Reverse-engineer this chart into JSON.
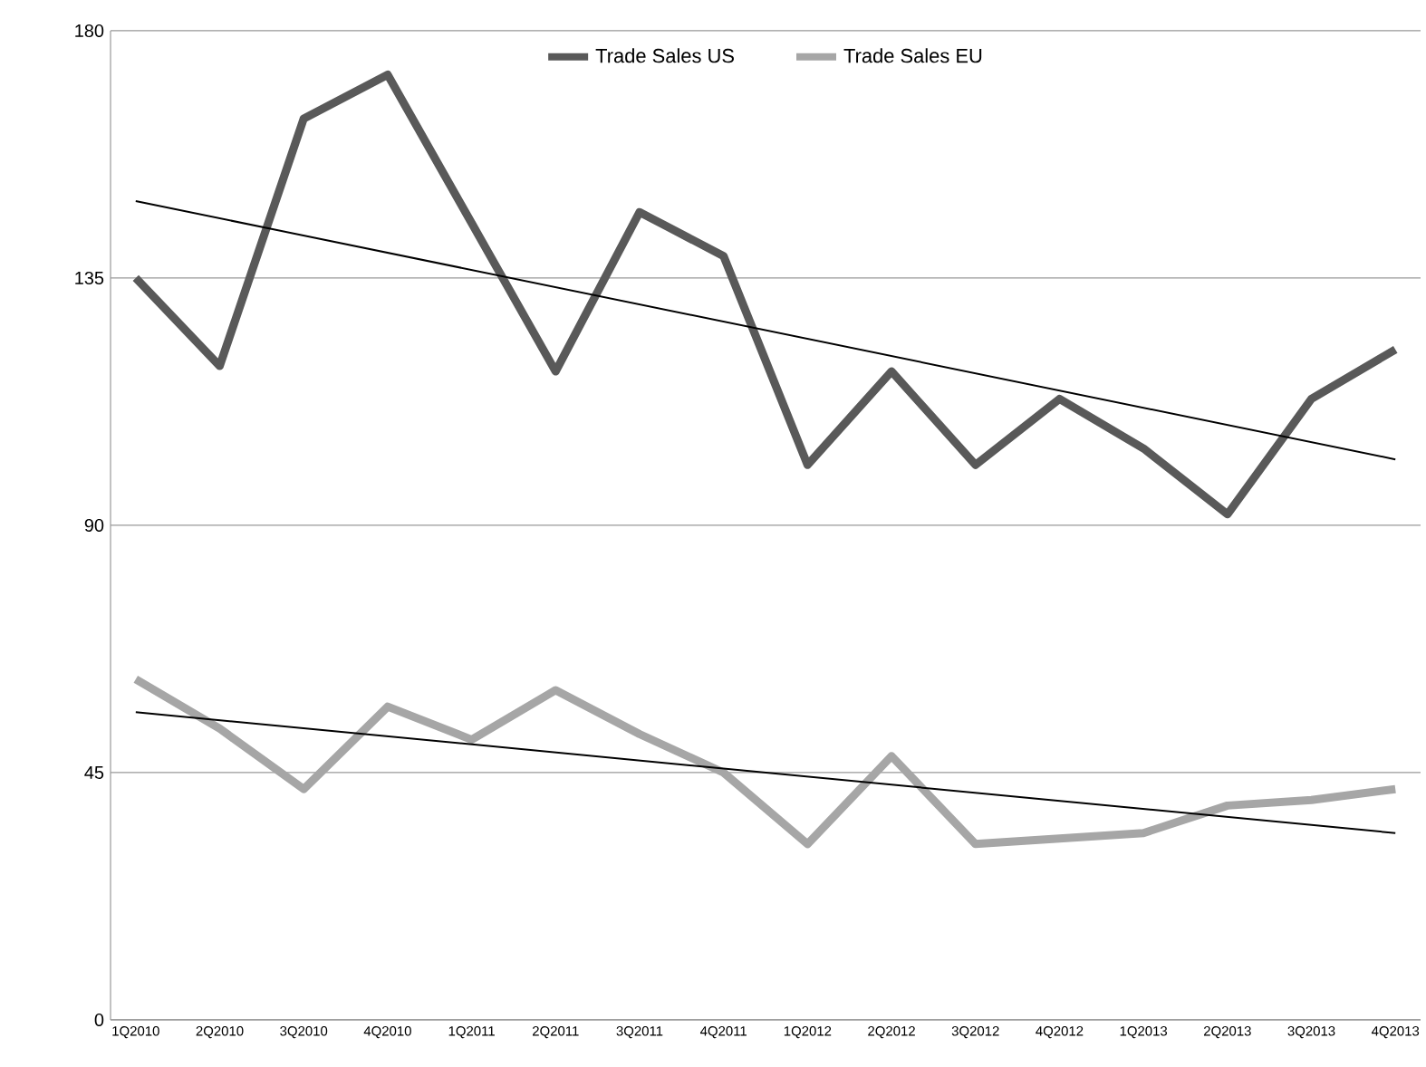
{
  "chart_data": {
    "type": "line",
    "categories": [
      "1Q2010",
      "2Q2010",
      "3Q2010",
      "4Q2010",
      "1Q2011",
      "2Q2011",
      "3Q2011",
      "4Q2011",
      "1Q2012",
      "2Q2012",
      "3Q2012",
      "4Q2012",
      "1Q2013",
      "2Q2013",
      "3Q2013",
      "4Q2013"
    ],
    "series": [
      {
        "name": "Trade Sales US",
        "color": "#595959",
        "values": [
          135,
          119,
          164,
          172,
          145,
          118,
          147,
          139,
          101,
          118,
          101,
          113,
          104,
          92,
          113,
          122
        ]
      },
      {
        "name": "Trade Sales EU",
        "color": "#a6a6a6",
        "values": [
          62,
          53,
          42,
          57,
          51,
          60,
          52,
          45,
          32,
          48,
          32,
          33,
          34,
          39,
          40,
          42
        ]
      },
      {
        "type": "line",
        "color": "#000000",
        "x": [
          "1Q2010",
          "4Q2013"
        ],
        "values": [
          149,
          102
        ]
      },
      {
        "type": "line",
        "color": "#000000",
        "x": [
          "1Q2010",
          "4Q2013"
        ],
        "values": [
          56,
          34
        ]
      }
    ],
    "ylim": [
      0,
      180
    ],
    "yticks": [
      0,
      45,
      90,
      135,
      180
    ],
    "grid": "y",
    "legend": "top",
    "marker": "none"
  }
}
